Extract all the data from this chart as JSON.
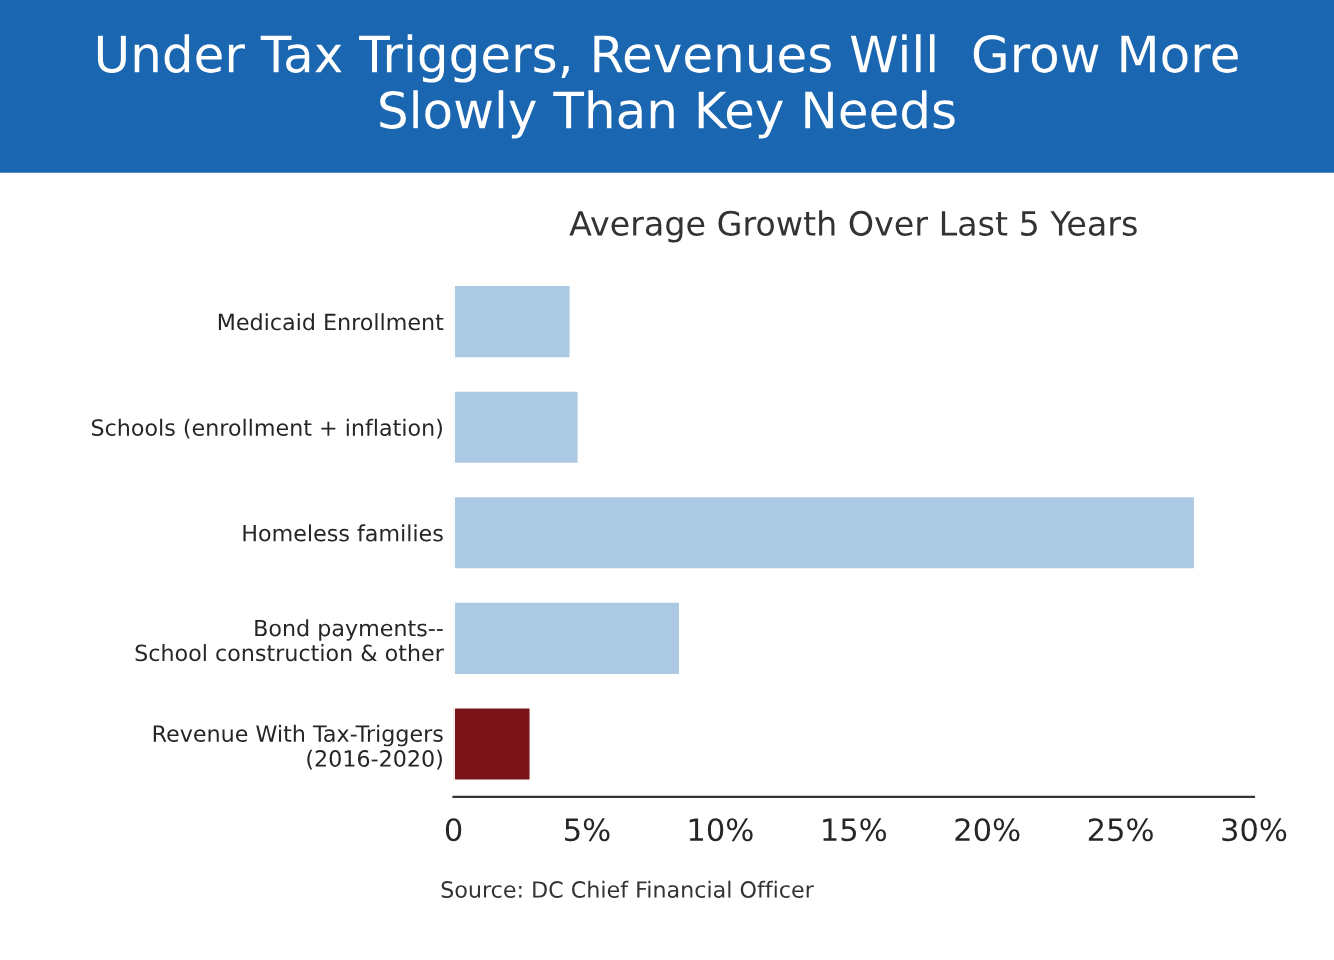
{
  "chart_data": {
    "type": "bar",
    "orientation": "horizontal",
    "title": "Under Tax Triggers, Revenues Will  Grow More\nSlowly Than Key Needs",
    "subtitle": "Average Growth Over Last 5 Years",
    "categories": [
      "Medicaid Enrollment",
      "Schools (enrollment + inflation)",
      "Homeless families",
      "Bond payments--\nSchool construction & other",
      "Revenue With Tax-Triggers\n(2016-2020)"
    ],
    "values": [
      4.4,
      4.7,
      27.8,
      8.5,
      2.9
    ],
    "colors": [
      "#abc9e3",
      "#abc9e3",
      "#abc9e3",
      "#abc9e3",
      "#7a1418"
    ],
    "xlim": [
      0,
      30
    ],
    "xticks": [
      {
        "value": 0,
        "label": "0"
      },
      {
        "value": 5,
        "label": "5%"
      },
      {
        "value": 10,
        "label": "10%"
      },
      {
        "value": 15,
        "label": "15%"
      },
      {
        "value": 20,
        "label": "20%"
      },
      {
        "value": 25,
        "label": "25%"
      },
      {
        "value": 30,
        "label": "30%"
      }
    ],
    "annotations": [
      "Source: DC Chief Financial Officer"
    ],
    "grid": false,
    "legend": false
  }
}
